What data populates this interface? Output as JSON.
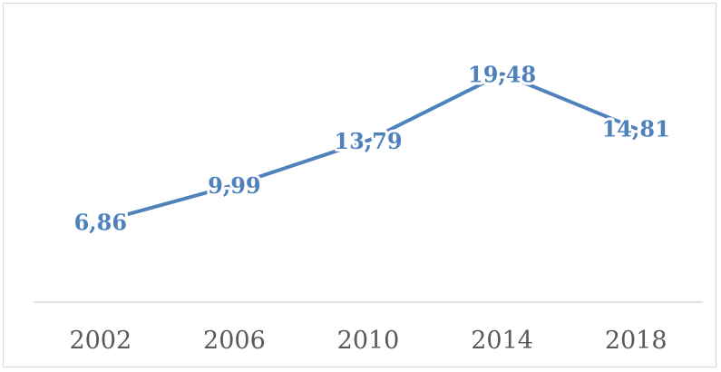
{
  "chart_data": {
    "type": "line",
    "categories": [
      "2002",
      "2006",
      "2010",
      "2014",
      "2018"
    ],
    "series": [
      {
        "values": [
          6.86,
          9.99,
          13.79,
          19.48,
          14.81
        ]
      }
    ],
    "data_labels": [
      "6,86",
      "9,99",
      "13,79",
      "19,48",
      "14,81"
    ],
    "title": "",
    "xlabel": "",
    "ylabel": "",
    "ylim": [
      0,
      25
    ],
    "grid": false,
    "legend": "none",
    "colors": {
      "line": "#4f81bd",
      "axis": "#d9d9d9",
      "tick_text": "#595959"
    }
  }
}
